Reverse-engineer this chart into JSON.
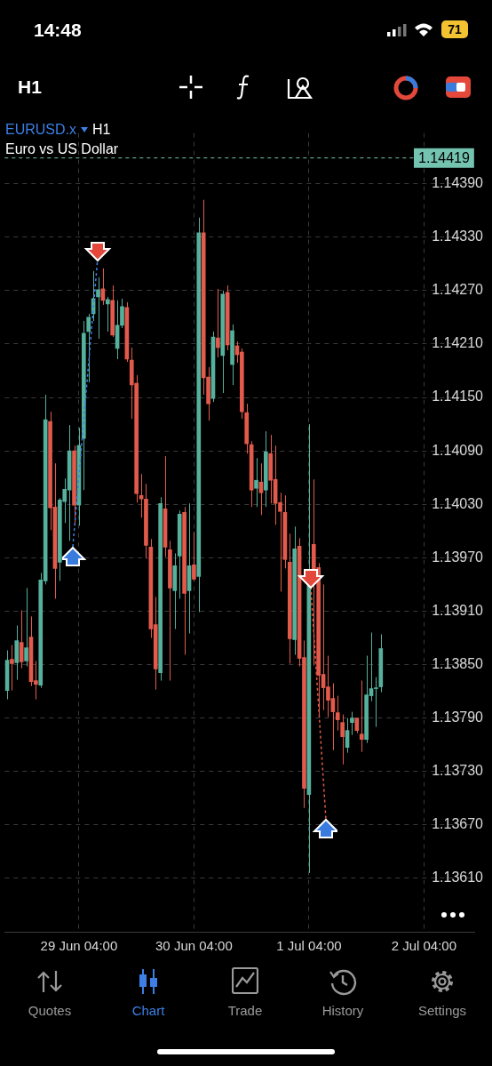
{
  "chart_data": {
    "type": "candlestick",
    "title": "EURUSD.x",
    "subtitle": "Euro vs US Dollar",
    "annotations": [
      "14:48",
      "71",
      "H1",
      "H1",
      "Quotes",
      "Chart",
      "Trade",
      "History",
      "Settings"
    ],
    "categories": [
      null,
      null,
      null,
      null,
      null,
      null,
      null,
      null,
      null,
      null,
      null,
      null,
      null,
      null,
      null,
      "29 Jun 04:00",
      null,
      null,
      null,
      null,
      null,
      null,
      null,
      null,
      null,
      null,
      null,
      null,
      null,
      null,
      null,
      null,
      null,
      null,
      null,
      null,
      null,
      null,
      null,
      "30 Jun 04:00",
      null,
      null,
      null,
      null,
      null,
      null,
      null,
      null,
      null,
      null,
      null,
      null,
      null,
      null,
      null,
      null,
      null,
      null,
      null,
      null,
      null,
      null,
      null,
      "1 Jul 04:00",
      null,
      null,
      null,
      null,
      null,
      null,
      null,
      null,
      null,
      null,
      null,
      null,
      null,
      null,
      null,
      null,
      null,
      null,
      null,
      null,
      null,
      null,
      null,
      "2 Jul 04:00",
      null,
      null,
      null,
      null,
      null,
      null,
      null,
      null,
      null,
      null
    ],
    "ohlc": [
      [
        1.13821,
        1.13866,
        1.13811,
        1.13855
      ],
      [
        1.13856,
        1.13872,
        1.13821,
        1.13851
      ],
      [
        1.13852,
        1.13894,
        1.13833,
        1.13877
      ],
      [
        1.13875,
        1.13911,
        1.13846,
        1.13853
      ],
      [
        1.13854,
        1.13936,
        1.13848,
        1.13869
      ],
      [
        1.13881,
        1.13904,
        1.13826,
        1.13831
      ],
      [
        1.13832,
        1.13854,
        1.13811,
        1.13828
      ],
      [
        1.13827,
        1.13953,
        1.13824,
        1.13945
      ],
      [
        1.13944,
        1.14153,
        1.1394,
        1.14125
      ],
      [
        1.14123,
        1.14134,
        1.14001,
        1.14026
      ],
      [
        1.14027,
        1.14076,
        1.13924,
        1.13958
      ],
      [
        1.13965,
        1.14037,
        1.13944,
        1.14035
      ],
      [
        1.14033,
        1.14059,
        1.14009,
        1.14047
      ],
      [
        1.14046,
        1.14119,
        1.13989,
        1.1409
      ],
      [
        1.1409,
        1.14096,
        1.14006,
        1.14029
      ],
      [
        1.14029,
        1.14116,
        1.14006,
        1.14096
      ],
      [
        1.14104,
        1.14236,
        1.14046,
        1.14222
      ],
      [
        1.14224,
        1.14244,
        1.14167,
        1.1424
      ],
      [
        1.14244,
        1.14292,
        1.14236,
        1.14261
      ],
      [
        1.14263,
        1.14285,
        1.14216,
        1.14271
      ],
      [
        1.14272,
        1.14295,
        1.14254,
        1.14259
      ],
      [
        1.14255,
        1.14263,
        1.14224,
        1.1426
      ],
      [
        1.14259,
        1.14276,
        1.14218,
        1.1422
      ],
      [
        1.14205,
        1.14259,
        1.14193,
        1.14231
      ],
      [
        1.14231,
        1.14261,
        1.14228,
        1.14252
      ],
      [
        1.14251,
        1.14257,
        1.1419,
        1.14193
      ],
      [
        1.14192,
        1.14206,
        1.14126,
        1.14164
      ],
      [
        1.14166,
        1.14175,
        1.14032,
        1.14042
      ],
      [
        1.1404,
        1.14064,
        1.14015,
        1.14036
      ],
      [
        1.14036,
        1.14053,
        1.13969,
        1.13984
      ],
      [
        1.13982,
        1.13991,
        1.1388,
        1.1389
      ],
      [
        1.13895,
        1.13926,
        1.13822,
        1.13845
      ],
      [
        1.13841,
        1.14038,
        1.13832,
        1.14031
      ],
      [
        1.14025,
        1.14084,
        1.13971,
        1.13982
      ],
      [
        1.13979,
        1.13989,
        1.13832,
        1.13936
      ],
      [
        1.13933,
        1.13975,
        1.1389,
        1.13961
      ],
      [
        1.13972,
        1.14023,
        1.13924,
        1.14019
      ],
      [
        1.14021,
        1.14027,
        1.13861,
        1.1393
      ],
      [
        1.13933,
        1.14031,
        1.13885,
        1.13961
      ],
      [
        1.13962,
        1.13999,
        1.13944,
        1.13946
      ],
      [
        1.13949,
        1.14352,
        1.13909,
        1.14335
      ],
      [
        1.14335,
        1.14372,
        1.14153,
        1.14172
      ],
      [
        1.14173,
        1.14184,
        1.14124,
        1.14143
      ],
      [
        1.14149,
        1.14224,
        1.14145,
        1.14218
      ],
      [
        1.14217,
        1.14272,
        1.14195,
        1.14206
      ],
      [
        1.14197,
        1.1427,
        1.14155,
        1.14266
      ],
      [
        1.14268,
        1.14276,
        1.14203,
        1.14209
      ],
      [
        1.14187,
        1.14232,
        1.14164,
        1.14225
      ],
      [
        1.14208,
        1.14213,
        1.14189,
        1.14198
      ],
      [
        1.14201,
        1.14205,
        1.14126,
        1.14134
      ],
      [
        1.14133,
        1.14143,
        1.14087,
        1.14098
      ],
      [
        1.14097,
        1.14101,
        1.14027,
        1.14046
      ],
      [
        1.14048,
        1.14082,
        1.14027,
        1.14057
      ],
      [
        1.14055,
        1.14076,
        1.14018,
        1.14043
      ],
      [
        1.14046,
        1.14112,
        1.14027,
        1.14089
      ],
      [
        1.14087,
        1.14108,
        1.14031,
        1.14057
      ],
      [
        1.14058,
        1.14096,
        1.14007,
        1.14031
      ],
      [
        1.14032,
        1.14043,
        1.13932,
        1.14022
      ],
      [
        1.14021,
        1.1404,
        1.13958,
        1.13968
      ],
      [
        1.13965,
        1.13997,
        1.13851,
        1.13879
      ],
      [
        1.13878,
        1.14005,
        1.13861,
        1.1398
      ],
      [
        1.13983,
        1.13992,
        1.13848,
        1.13857
      ],
      [
        1.13858,
        1.13877,
        1.13689,
        1.13711
      ],
      [
        1.13704,
        1.1412,
        1.13616,
        1.13955
      ],
      [
        1.13985,
        1.14058,
        1.13849,
        1.13955
      ],
      [
        1.13959,
        1.13964,
        1.13791,
        1.13838
      ],
      [
        1.13839,
        1.1394,
        1.13799,
        1.13824
      ],
      [
        1.13825,
        1.1386,
        1.13791,
        1.1381
      ],
      [
        1.13812,
        1.13829,
        1.13754,
        1.13797
      ],
      [
        1.13796,
        1.13815,
        1.13776,
        1.13788
      ],
      [
        1.13785,
        1.13794,
        1.13738,
        1.13769
      ],
      [
        1.13757,
        1.1379,
        1.13751,
        1.13776
      ],
      [
        1.13785,
        1.13797,
        1.13771,
        1.1379
      ],
      [
        1.1379,
        1.1379,
        1.13773,
        1.13776
      ],
      [
        1.13772,
        1.13832,
        1.13752,
        1.13766
      ],
      [
        1.13766,
        1.1386,
        1.13762,
        1.13816
      ],
      [
        1.13815,
        1.13886,
        1.13809,
        1.13823
      ],
      [
        1.13823,
        1.13836,
        1.1378,
        1.13824
      ],
      [
        1.13825,
        1.13884,
        1.13819,
        1.13868
      ],
      null,
      null,
      null,
      null,
      null,
      null,
      null,
      null,
      null,
      null,
      null,
      null,
      null,
      null,
      null,
      null,
      null,
      null,
      null
    ],
    "colors": [
      "#55b09c",
      "#e25a4c",
      "#55b09c",
      "#e25a4c",
      "#55b09c",
      "#e25a4c",
      "#e25a4c",
      "#55b09c",
      "#55b09c",
      "#e25a4c",
      "#e25a4c",
      "#55b09c",
      "#55b09c",
      "#55b09c",
      "#e25a4c",
      "#55b09c",
      "#55b09c",
      "#55b09c",
      "#55b09c",
      "#55b09c",
      "#e25a4c",
      "#55b09c",
      "#e25a4c",
      "#55b09c",
      "#55b09c",
      "#e25a4c",
      "#e25a4c",
      "#e25a4c",
      "#e25a4c",
      "#e25a4c",
      "#e25a4c",
      "#e25a4c",
      "#55b09c",
      "#e25a4c",
      "#e25a4c",
      "#55b09c",
      "#55b09c",
      "#e25a4c",
      "#55b09c",
      "#e25a4c",
      "#55b09c",
      "#e25a4c",
      "#e25a4c",
      "#55b09c",
      "#e25a4c",
      "#55b09c",
      "#e25a4c",
      "#55b09c",
      "#e25a4c",
      "#e25a4c",
      "#e25a4c",
      "#e25a4c",
      "#55b09c",
      "#e25a4c",
      "#55b09c",
      "#e25a4c",
      "#e25a4c",
      "#e25a4c",
      "#e25a4c",
      "#e25a4c",
      "#55b09c",
      "#e25a4c",
      "#e25a4c",
      "#55b09c",
      "#e25a4c",
      "#e25a4c",
      "#e25a4c",
      "#e25a4c",
      "#e25a4c",
      "#e25a4c",
      "#e25a4c",
      "#55b09c",
      "#55b09c",
      "#e25a4c",
      "#e25a4c",
      "#55b09c",
      "#55b09c",
      "#55b09c",
      "#55b09c",
      null,
      null,
      null,
      null,
      null,
      null,
      null,
      null,
      null,
      null,
      null,
      null,
      null,
      null,
      null,
      null,
      null,
      null,
      null
    ],
    "ylim": [
      1.1355,
      1.14447
    ],
    "yticks": [
      {
        "value": 1.1361,
        "label": "1.13610"
      },
      {
        "value": 1.1367,
        "label": "1.13670"
      },
      {
        "value": 1.1373,
        "label": "1.13730"
      },
      {
        "value": 1.1379,
        "label": "1.13790"
      },
      {
        "value": 1.1385,
        "label": "1.13850"
      },
      {
        "value": 1.1391,
        "label": "1.13910"
      },
      {
        "value": 1.1397,
        "label": "1.13970"
      },
      {
        "value": 1.1403,
        "label": "1.14030"
      },
      {
        "value": 1.1409,
        "label": "1.14090"
      },
      {
        "value": 1.1415,
        "label": "1.14150"
      },
      {
        "value": 1.1421,
        "label": "1.14210"
      },
      {
        "value": 1.1427,
        "label": "1.14270"
      },
      {
        "value": 1.1433,
        "label": "1.14330"
      },
      {
        "value": 1.1439,
        "label": "1.14390"
      }
    ],
    "ref_lines": [
      {
        "axis": "y",
        "value": 1.14419,
        "label": "1.14419",
        "color": "#74c3b0",
        "line_style": "dashed"
      }
    ],
    "grid": true
  }
}
